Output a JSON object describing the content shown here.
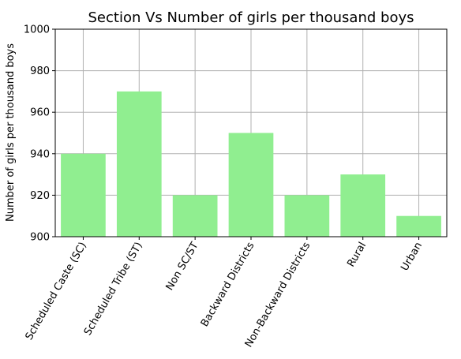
{
  "chart_data": {
    "type": "bar",
    "title": "Section Vs Number of girls per thousand boys",
    "xlabel": "",
    "ylabel": "Number of girls per thousand boys",
    "categories": [
      "Scheduled Caste (SC)",
      "Scheduled Tribe (ST)",
      "Non SC/ST",
      "Backward Districts",
      "Non-Backward Districts",
      "Rural",
      "Urban"
    ],
    "values": [
      940,
      970,
      920,
      950,
      920,
      930,
      910
    ],
    "ylim": [
      900,
      1000
    ],
    "yticks": [
      900,
      920,
      940,
      960,
      980,
      1000
    ],
    "grid": true,
    "bar_color": "#90ee90",
    "grid_color": "#b0b0b0",
    "xtick_rotation": -60
  }
}
